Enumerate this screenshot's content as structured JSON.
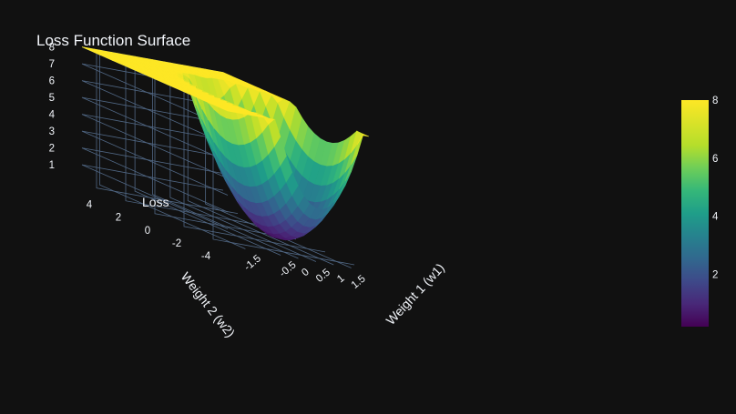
{
  "chart_data": {
    "type": "surface",
    "title": "Loss Function Surface",
    "scene": {
      "x_axis": {
        "title": "Weight 1 (w1)",
        "ticks": [
          "-1.5",
          "-0.5",
          "0",
          "0.5",
          "1",
          "1.5"
        ],
        "range": [
          -2,
          2
        ]
      },
      "y_axis": {
        "title": "Weight 2 (w2)",
        "ticks": [
          "-4",
          "-2",
          "0",
          "2",
          "4"
        ],
        "range": [
          -5,
          5
        ]
      },
      "z_axis": {
        "title": "Loss",
        "ticks": [
          "1",
          "2",
          "3",
          "4",
          "5",
          "6",
          "7",
          "8"
        ],
        "range": [
          0,
          8
        ]
      }
    },
    "surface": {
      "x": [
        -2,
        -1.6,
        -1.2,
        -0.8,
        -0.4,
        0,
        0.4,
        0.8,
        1.2,
        1.6,
        2
      ],
      "y": [
        -5,
        -4,
        -3,
        -2,
        -1,
        0,
        1,
        2,
        3,
        4,
        5
      ],
      "z_cap": 8,
      "colorscale": "viridis"
    },
    "colorbar": {
      "ticks": [
        "2",
        "4",
        "6",
        "8"
      ],
      "range": [
        0.2,
        8
      ]
    },
    "grid": true,
    "colors": {
      "background": "#111111",
      "grid": "#506784",
      "text": "#f2f5fa"
    }
  }
}
